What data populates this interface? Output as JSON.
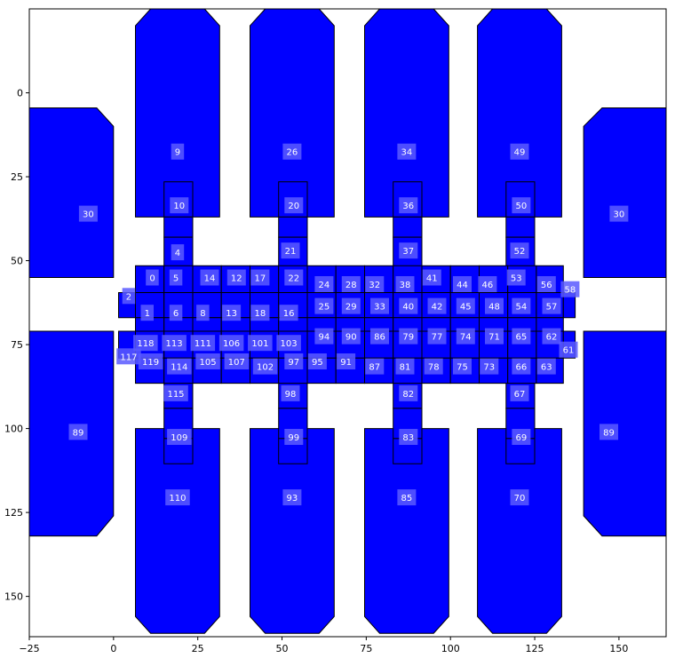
{
  "figure": {
    "x_ticks": [
      "−25",
      "0",
      "25",
      "50",
      "75",
      "100",
      "125",
      "150"
    ],
    "y_ticks": [
      "0",
      "25",
      "50",
      "75",
      "100",
      "125",
      "150"
    ],
    "xlim": [
      -25,
      164
    ],
    "ylim": [
      162,
      -25
    ]
  },
  "style": {
    "fill_color": "#0000ff",
    "outline_color": "#000000",
    "label_bg": "#5a5aff",
    "label_text_color": "#ffffff",
    "background": "#ffffff"
  },
  "labels": [
    {
      "text": "9",
      "x": 19,
      "y": 17.5
    },
    {
      "text": "26",
      "x": 53,
      "y": 17.5
    },
    {
      "text": "34",
      "x": 87,
      "y": 17.5
    },
    {
      "text": "49",
      "x": 120.5,
      "y": 17.5
    },
    {
      "text": "30",
      "x": -7.5,
      "y": 36
    },
    {
      "text": "30",
      "x": 150,
      "y": 36
    },
    {
      "text": "10",
      "x": 19.5,
      "y": 33.5
    },
    {
      "text": "20",
      "x": 53.5,
      "y": 33.5
    },
    {
      "text": "36",
      "x": 87.5,
      "y": 33.5
    },
    {
      "text": "50",
      "x": 121,
      "y": 33.5
    },
    {
      "text": "4",
      "x": 19,
      "y": 47.5
    },
    {
      "text": "21",
      "x": 52.5,
      "y": 47
    },
    {
      "text": "37",
      "x": 87.5,
      "y": 47
    },
    {
      "text": "52",
      "x": 120.5,
      "y": 47
    },
    {
      "text": "0",
      "x": 11.5,
      "y": 55
    },
    {
      "text": "5",
      "x": 18.5,
      "y": 55
    },
    {
      "text": "14",
      "x": 28.5,
      "y": 55
    },
    {
      "text": "12",
      "x": 36.5,
      "y": 55
    },
    {
      "text": "17",
      "x": 43.5,
      "y": 55
    },
    {
      "text": "22",
      "x": 53.5,
      "y": 55
    },
    {
      "text": "24",
      "x": 62.5,
      "y": 57
    },
    {
      "text": "28",
      "x": 70.5,
      "y": 57
    },
    {
      "text": "32",
      "x": 77.5,
      "y": 57
    },
    {
      "text": "38",
      "x": 86.5,
      "y": 57
    },
    {
      "text": "41",
      "x": 94.5,
      "y": 55
    },
    {
      "text": "44",
      "x": 103.5,
      "y": 57
    },
    {
      "text": "46",
      "x": 111,
      "y": 57
    },
    {
      "text": "53",
      "x": 119.5,
      "y": 55
    },
    {
      "text": "56",
      "x": 128.5,
      "y": 57
    },
    {
      "text": "58",
      "x": 135.5,
      "y": 58.5
    },
    {
      "text": "2",
      "x": 4.5,
      "y": 60.5
    },
    {
      "text": "1",
      "x": 10,
      "y": 65.5
    },
    {
      "text": "6",
      "x": 18.5,
      "y": 65.5
    },
    {
      "text": "8",
      "x": 26.5,
      "y": 65.5
    },
    {
      "text": "13",
      "x": 35,
      "y": 65.5
    },
    {
      "text": "18",
      "x": 43.5,
      "y": 65.5
    },
    {
      "text": "16",
      "x": 52,
      "y": 65.5
    },
    {
      "text": "25",
      "x": 62.5,
      "y": 63.5
    },
    {
      "text": "29",
      "x": 70.5,
      "y": 63.5
    },
    {
      "text": "33",
      "x": 79,
      "y": 63.5
    },
    {
      "text": "40",
      "x": 87.5,
      "y": 63.5
    },
    {
      "text": "42",
      "x": 96,
      "y": 63.5
    },
    {
      "text": "45",
      "x": 104.5,
      "y": 63.5
    },
    {
      "text": "48",
      "x": 113,
      "y": 63.5
    },
    {
      "text": "54",
      "x": 121,
      "y": 63.5
    },
    {
      "text": "57",
      "x": 130,
      "y": 63.5
    },
    {
      "text": "94",
      "x": 62.5,
      "y": 72.5
    },
    {
      "text": "90",
      "x": 70.5,
      "y": 72.5
    },
    {
      "text": "86",
      "x": 79,
      "y": 72.5
    },
    {
      "text": "79",
      "x": 87.5,
      "y": 72.5
    },
    {
      "text": "77",
      "x": 96,
      "y": 72.5
    },
    {
      "text": "74",
      "x": 104.5,
      "y": 72.5
    },
    {
      "text": "71",
      "x": 113,
      "y": 72.5
    },
    {
      "text": "65",
      "x": 121,
      "y": 72.5
    },
    {
      "text": "62",
      "x": 130,
      "y": 72.5
    },
    {
      "text": "118",
      "x": 9.5,
      "y": 74.5
    },
    {
      "text": "113",
      "x": 18,
      "y": 74.5
    },
    {
      "text": "111",
      "x": 26.5,
      "y": 74.5
    },
    {
      "text": "106",
      "x": 35,
      "y": 74.5
    },
    {
      "text": "101",
      "x": 43.5,
      "y": 74.5
    },
    {
      "text": "103",
      "x": 52,
      "y": 74.5
    },
    {
      "text": "61",
      "x": 135,
      "y": 76.5
    },
    {
      "text": "117",
      "x": 4.5,
      "y": 78.5
    },
    {
      "text": "119",
      "x": 11,
      "y": 80
    },
    {
      "text": "114",
      "x": 19.5,
      "y": 81.5
    },
    {
      "text": "105",
      "x": 28,
      "y": 80
    },
    {
      "text": "107",
      "x": 36.5,
      "y": 80
    },
    {
      "text": "102",
      "x": 45,
      "y": 81.5
    },
    {
      "text": "97",
      "x": 53.5,
      "y": 80
    },
    {
      "text": "95",
      "x": 60.5,
      "y": 80
    },
    {
      "text": "91",
      "x": 69,
      "y": 80
    },
    {
      "text": "87",
      "x": 77.5,
      "y": 81.5
    },
    {
      "text": "81",
      "x": 86.5,
      "y": 81.5
    },
    {
      "text": "78",
      "x": 95,
      "y": 81.5
    },
    {
      "text": "75",
      "x": 103.5,
      "y": 81.5
    },
    {
      "text": "73",
      "x": 111.5,
      "y": 81.5
    },
    {
      "text": "66",
      "x": 121,
      "y": 81.5
    },
    {
      "text": "63",
      "x": 128.5,
      "y": 81.5
    },
    {
      "text": "115",
      "x": 18.5,
      "y": 89.5
    },
    {
      "text": "98",
      "x": 52.5,
      "y": 89.5
    },
    {
      "text": "82",
      "x": 87.5,
      "y": 89.5
    },
    {
      "text": "67",
      "x": 120.5,
      "y": 89.5
    },
    {
      "text": "89",
      "x": -10.5,
      "y": 101
    },
    {
      "text": "89",
      "x": 147,
      "y": 101
    },
    {
      "text": "109",
      "x": 19.5,
      "y": 102.5
    },
    {
      "text": "99",
      "x": 53.5,
      "y": 102.5
    },
    {
      "text": "83",
      "x": 87.5,
      "y": 102.5
    },
    {
      "text": "69",
      "x": 121,
      "y": 102.5
    },
    {
      "text": "110",
      "x": 19,
      "y": 120.5
    },
    {
      "text": "93",
      "x": 53,
      "y": 120.5
    },
    {
      "text": "85",
      "x": 87,
      "y": 120.5
    },
    {
      "text": "70",
      "x": 120.5,
      "y": 120.5
    }
  ]
}
